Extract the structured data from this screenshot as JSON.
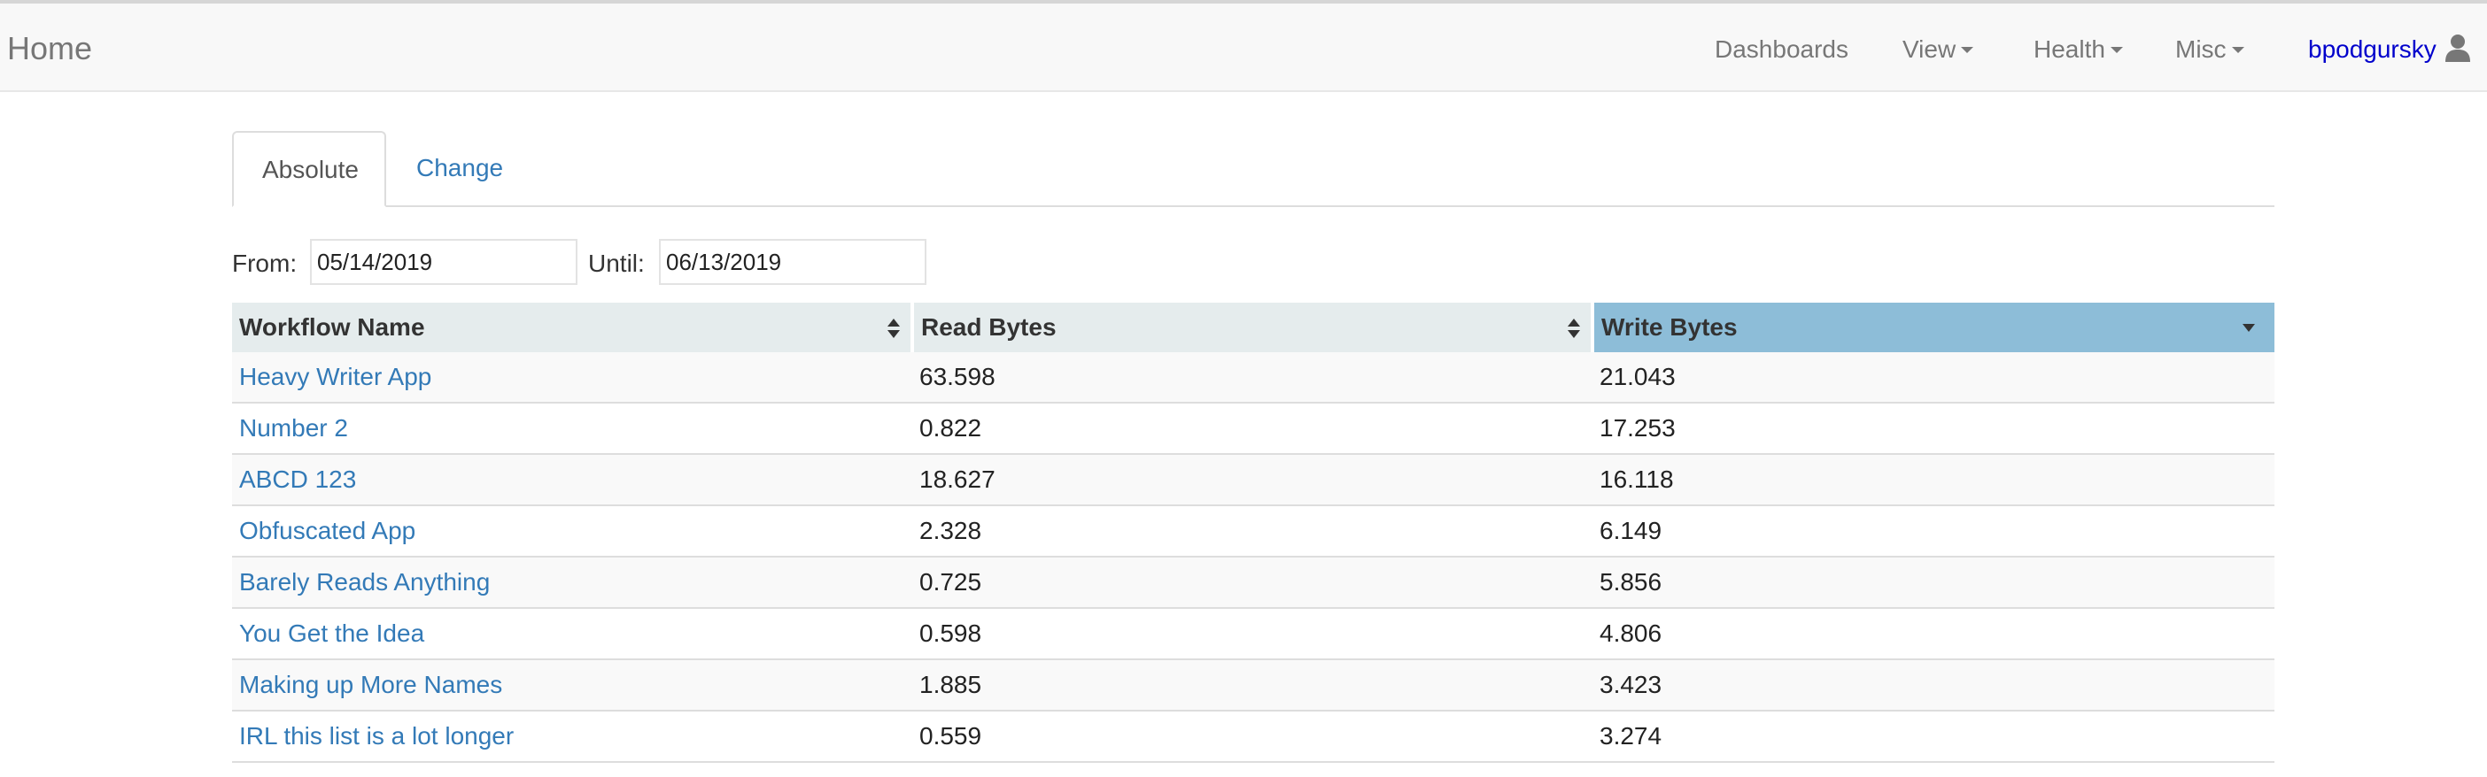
{
  "navbar": {
    "brand": "Home",
    "dashboards": "Dashboards",
    "view": "View",
    "health": "Health",
    "misc": "Misc",
    "user": "bpodgursky"
  },
  "tabs": {
    "absolute": "Absolute",
    "change": "Change"
  },
  "filters": {
    "from_label": "From:",
    "from_value": "05/14/2019",
    "until_label": "Until:",
    "until_value": "06/13/2019"
  },
  "table": {
    "headers": {
      "workflow": "Workflow Name",
      "read": "Read Bytes",
      "write": "Write Bytes"
    },
    "rows": [
      {
        "name": "Heavy Writer App",
        "read": "63.598",
        "write": "21.043"
      },
      {
        "name": "Number 2",
        "read": "0.822",
        "write": "17.253"
      },
      {
        "name": "ABCD 123",
        "read": "18.627",
        "write": "16.118"
      },
      {
        "name": "Obfuscated App",
        "read": "2.328",
        "write": "6.149"
      },
      {
        "name": "Barely Reads Anything",
        "read": "0.725",
        "write": "5.856"
      },
      {
        "name": "You Get the Idea",
        "read": "0.598",
        "write": "4.806"
      },
      {
        "name": "Making up More Names",
        "read": "1.885",
        "write": "3.423"
      },
      {
        "name": "IRL this list is a lot longer",
        "read": "0.559",
        "write": "3.274"
      }
    ]
  },
  "colors": {
    "link": "#337ab7",
    "user_link": "#0000cc",
    "header_bg": "#e5eced",
    "sorted_header_bg": "#8dbdd8"
  },
  "icons": {
    "user": "user-icon",
    "sort_both": "sort-both-icon",
    "sort_desc": "sort-desc-icon",
    "dropdown": "caret-down-icon"
  }
}
